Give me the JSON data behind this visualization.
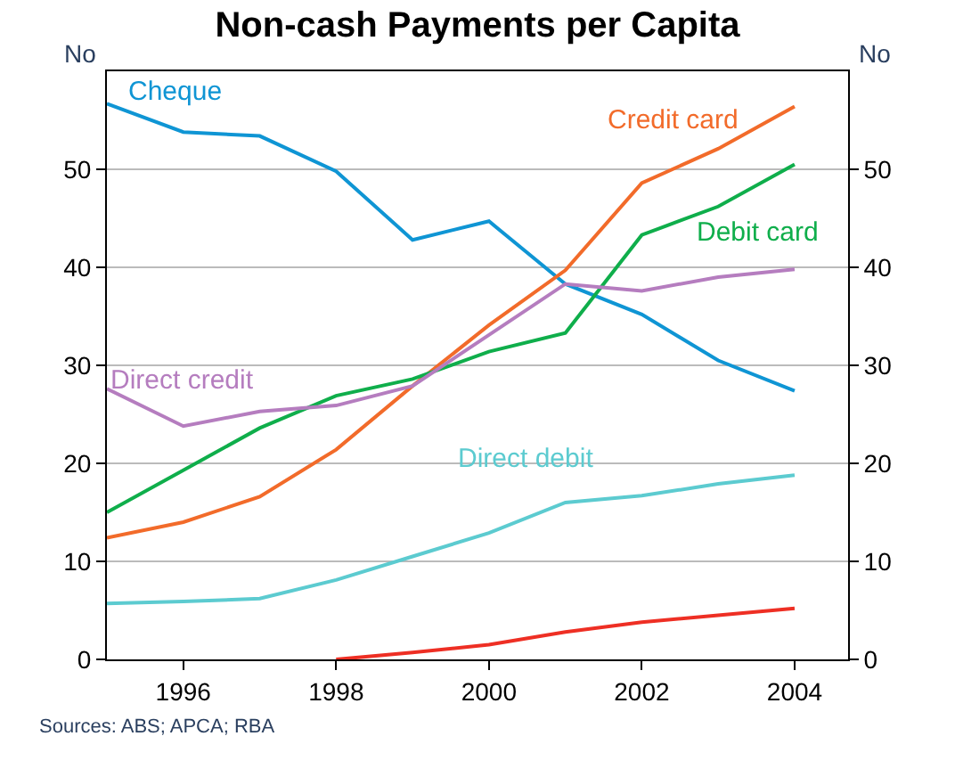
{
  "chart_data": {
    "type": "line",
    "title": "Non-cash Payments per Capita",
    "ylabel": "No",
    "y2label": "No",
    "x": [
      1995,
      1996,
      1997,
      1998,
      1999,
      2000,
      2001,
      2002,
      2003,
      2004
    ],
    "xlim": [
      1995,
      2004.7
    ],
    "xticks": [
      1996,
      1998,
      2000,
      2002,
      2004
    ],
    "ylim": [
      0,
      60
    ],
    "yticks": [
      0,
      10,
      20,
      30,
      40,
      50
    ],
    "y2lim": [
      0,
      60
    ],
    "y2ticks": [
      0,
      10,
      20,
      30,
      40,
      50
    ],
    "grid": "y",
    "legend": false,
    "marker": "none",
    "line_style": "solid",
    "series": [
      {
        "name": "Cheque",
        "color": "#0f95d4",
        "values": [
          56.7,
          53.8,
          53.4,
          49.8,
          42.8,
          44.7,
          38.3,
          35.2,
          30.5,
          27.4
        ]
      },
      {
        "name": "Credit card",
        "color": "#f26b2a",
        "values": [
          12.4,
          14.0,
          16.6,
          21.4,
          27.9,
          34.1,
          39.7,
          48.6,
          52.1,
          56.4
        ]
      },
      {
        "name": "Debit card",
        "color": "#0fae4b",
        "values": [
          15.0,
          19.3,
          23.6,
          26.9,
          28.6,
          31.4,
          33.3,
          43.3,
          46.2,
          50.5
        ]
      },
      {
        "name": "Direct credit",
        "color": "#b57dbf",
        "values": [
          27.6,
          23.8,
          25.3,
          25.9,
          27.9,
          33.1,
          38.3,
          37.6,
          39.0,
          39.8
        ]
      },
      {
        "name": "Direct debit",
        "color": "#5ccbd0",
        "values": [
          5.7,
          5.9,
          6.2,
          8.1,
          10.5,
          12.9,
          16.0,
          16.7,
          17.9,
          18.8
        ]
      },
      {
        "color": "#ee2f24",
        "values": [
          null,
          null,
          null,
          0.0,
          0.7,
          1.5,
          2.8,
          3.8,
          4.5,
          5.2
        ]
      }
    ],
    "annotations": [
      "Sources: ABS; APCA; RBA"
    ]
  }
}
